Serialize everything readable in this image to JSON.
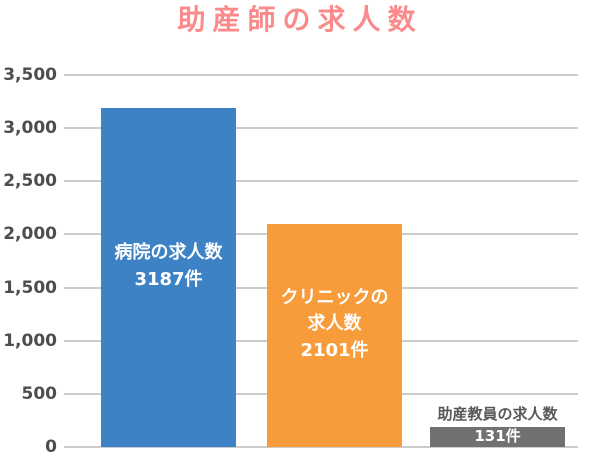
{
  "chart_data": {
    "type": "bar",
    "title": "助産師の求人数",
    "unit": "件",
    "xlabel": "",
    "ylabel": "",
    "ylim": [
      0,
      3500
    ],
    "ytick_step": 500,
    "ytick_labels": [
      "3,500",
      "3,000",
      "2,500",
      "2,000",
      "1,500",
      "1,000",
      "500",
      "0"
    ],
    "grid": true,
    "legend": false,
    "categories": [
      "病院の求人数",
      "クリニックの求人数",
      "助産教員の求人数"
    ],
    "values": [
      3187,
      2101,
      131
    ],
    "bars": [
      {
        "name": "bar-hospital",
        "category": "病院の求人数",
        "value": 3187,
        "color": "#3d82c4",
        "label_lines": [
          "病院の求人数",
          "3187件"
        ],
        "label_position": "inside"
      },
      {
        "name": "bar-clinic",
        "category": "クリニックの求人数",
        "value": 2101,
        "color": "#f89b3a",
        "label_lines": [
          "クリニックの",
          "求人数",
          "2101件"
        ],
        "label_position": "inside"
      },
      {
        "name": "bar-midwife-teacher",
        "category": "助産教員の求人数",
        "value": 131,
        "color": "#717171",
        "caption_above": "助産教員の求人数",
        "label_lines": [
          "131件"
        ],
        "label_position": "inside"
      }
    ],
    "colors": {
      "title": "#fb8a8a",
      "axis_label": "#4d4d4d",
      "gridline": "#cccccc",
      "bar_label": "#ffffff",
      "caption": "#595959",
      "background": "#ffffff"
    }
  }
}
